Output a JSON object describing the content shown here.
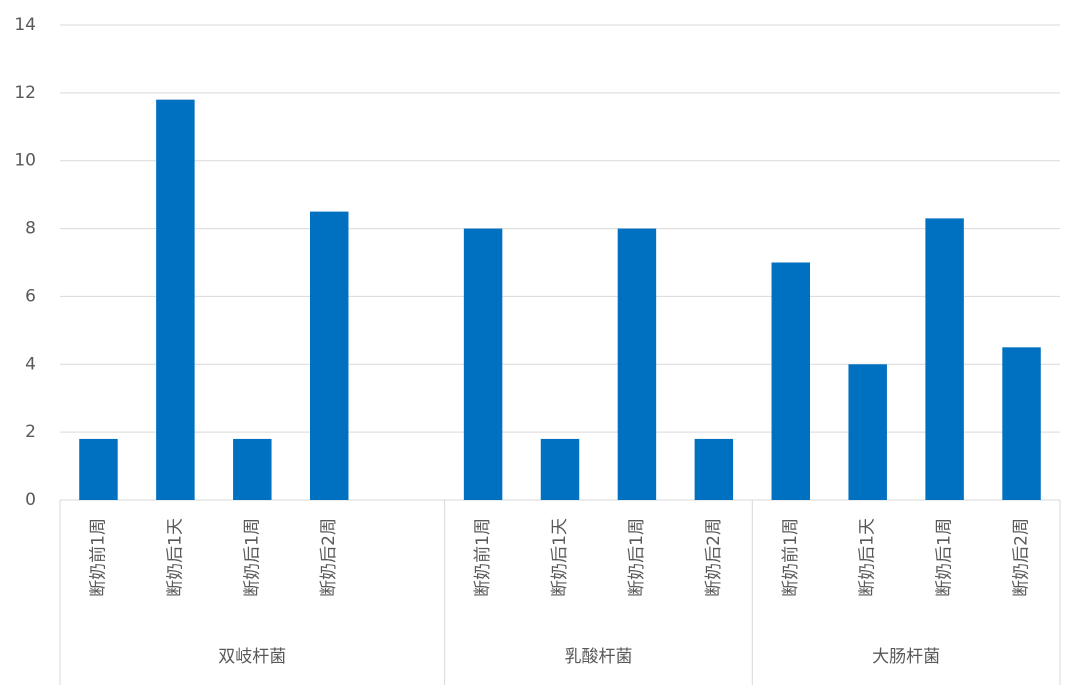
{
  "chart_data": {
    "type": "bar",
    "color": "#0070c0",
    "groups": [
      {
        "name": "双岐杆菌",
        "categories": [
          "断奶前1周",
          "断奶后1天",
          "断奶后1周",
          "断奶后2周",
          null
        ],
        "values": [
          1.8,
          11.8,
          1.8,
          8.5,
          null
        ]
      },
      {
        "name": "乳酸杆菌",
        "categories": [
          "断奶前1周",
          "断奶后1天",
          "断奶后1周",
          "断奶后2周"
        ],
        "values": [
          8,
          1.8,
          8,
          1.8
        ]
      },
      {
        "name": "大肠杆菌",
        "categories": [
          "断奶前1周",
          "断奶后1天",
          "断奶后1周",
          "断奶后2周"
        ],
        "values": [
          7,
          4,
          8.3,
          4.5
        ]
      }
    ],
    "ylim": [
      0,
      14
    ],
    "yticks": [
      0,
      2,
      4,
      6,
      8,
      10,
      12,
      14
    ],
    "grid": true
  }
}
